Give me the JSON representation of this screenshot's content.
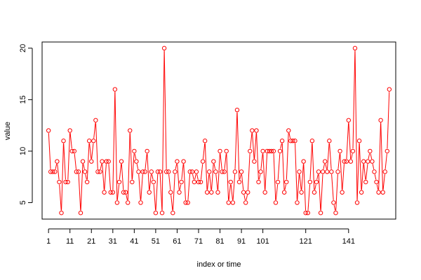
{
  "chart_data": {
    "type": "line",
    "title": "",
    "xlabel": "index or time",
    "ylabel": "value",
    "xlim": [
      -2,
      163
    ],
    "ylim": [
      3.4,
      20.6
    ],
    "x_ticks": [
      1,
      11,
      21,
      31,
      41,
      51,
      61,
      71,
      81,
      91,
      101,
      121,
      141
    ],
    "y_ticks": [
      5,
      10,
      15,
      20
    ],
    "grid": false,
    "legend": "none",
    "series_color": "#ff0000",
    "marker": "open-circle",
    "series": [
      {
        "values": [
          12,
          8,
          8,
          8,
          9,
          7,
          4,
          11,
          7,
          7,
          12,
          10,
          10,
          8,
          8,
          4,
          9,
          8,
          7,
          11,
          9,
          11,
          13,
          8,
          8,
          9,
          6,
          9,
          9,
          6,
          6,
          16,
          5,
          7,
          9,
          6,
          6,
          5,
          12,
          7,
          10,
          9,
          8,
          5,
          8,
          8,
          10,
          6,
          8,
          7,
          4,
          8,
          8,
          4,
          20,
          8,
          8,
          6,
          4,
          8,
          9,
          6,
          7,
          9,
          5,
          5,
          8,
          8,
          7,
          8,
          7,
          7,
          9,
          11,
          6,
          8,
          6,
          9,
          8,
          6,
          10,
          8,
          8,
          10,
          5,
          7,
          5,
          8,
          14,
          7,
          8,
          6,
          5,
          6,
          10,
          12,
          9,
          12,
          7,
          8,
          10,
          6,
          10,
          10,
          10,
          10,
          5,
          7,
          10,
          11,
          6,
          7,
          12,
          11,
          11,
          11,
          5,
          8,
          6,
          9,
          4,
          4,
          7,
          11,
          6,
          7,
          8,
          4,
          8,
          9,
          8,
          11,
          8,
          5,
          4,
          8,
          10,
          6,
          9,
          9,
          13,
          9,
          10,
          20,
          5,
          11,
          6,
          9,
          7,
          9,
          10,
          9,
          8,
          7,
          6,
          13,
          6,
          8,
          10,
          16
        ]
      }
    ]
  }
}
